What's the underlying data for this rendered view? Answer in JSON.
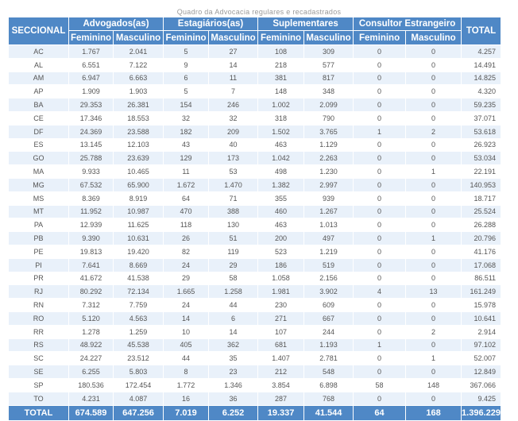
{
  "caption": "Quadro da Advocacia regulares e recadastrados",
  "headers": {
    "seccional": "SECCIONAL",
    "total": "TOTAL",
    "groups": [
      "Advogados(as)",
      "Estagiários(as)",
      "Suplementares",
      "Consultor Estrangeiro"
    ],
    "feminino": "Feminino",
    "masculino": "Masculino"
  },
  "rows": [
    {
      "uf": "AC",
      "adv_f": "1.767",
      "adv_m": "2.041",
      "est_f": "5",
      "est_m": "27",
      "sup_f": "108",
      "sup_m": "309",
      "con_f": "0",
      "con_m": "0",
      "total": "4.257"
    },
    {
      "uf": "AL",
      "adv_f": "6.551",
      "adv_m": "7.122",
      "est_f": "9",
      "est_m": "14",
      "sup_f": "218",
      "sup_m": "577",
      "con_f": "0",
      "con_m": "0",
      "total": "14.491"
    },
    {
      "uf": "AM",
      "adv_f": "6.947",
      "adv_m": "6.663",
      "est_f": "6",
      "est_m": "11",
      "sup_f": "381",
      "sup_m": "817",
      "con_f": "0",
      "con_m": "0",
      "total": "14.825"
    },
    {
      "uf": "AP",
      "adv_f": "1.909",
      "adv_m": "1.903",
      "est_f": "5",
      "est_m": "7",
      "sup_f": "148",
      "sup_m": "348",
      "con_f": "0",
      "con_m": "0",
      "total": "4.320"
    },
    {
      "uf": "BA",
      "adv_f": "29.353",
      "adv_m": "26.381",
      "est_f": "154",
      "est_m": "246",
      "sup_f": "1.002",
      "sup_m": "2.099",
      "con_f": "0",
      "con_m": "0",
      "total": "59.235"
    },
    {
      "uf": "CE",
      "adv_f": "17.346",
      "adv_m": "18.553",
      "est_f": "32",
      "est_m": "32",
      "sup_f": "318",
      "sup_m": "790",
      "con_f": "0",
      "con_m": "0",
      "total": "37.071"
    },
    {
      "uf": "DF",
      "adv_f": "24.369",
      "adv_m": "23.588",
      "est_f": "182",
      "est_m": "209",
      "sup_f": "1.502",
      "sup_m": "3.765",
      "con_f": "1",
      "con_m": "2",
      "total": "53.618"
    },
    {
      "uf": "ES",
      "adv_f": "13.145",
      "adv_m": "12.103",
      "est_f": "43",
      "est_m": "40",
      "sup_f": "463",
      "sup_m": "1.129",
      "con_f": "0",
      "con_m": "0",
      "total": "26.923"
    },
    {
      "uf": "GO",
      "adv_f": "25.788",
      "adv_m": "23.639",
      "est_f": "129",
      "est_m": "173",
      "sup_f": "1.042",
      "sup_m": "2.263",
      "con_f": "0",
      "con_m": "0",
      "total": "53.034"
    },
    {
      "uf": "MA",
      "adv_f": "9.933",
      "adv_m": "10.465",
      "est_f": "11",
      "est_m": "53",
      "sup_f": "498",
      "sup_m": "1.230",
      "con_f": "0",
      "con_m": "1",
      "total": "22.191"
    },
    {
      "uf": "MG",
      "adv_f": "67.532",
      "adv_m": "65.900",
      "est_f": "1.672",
      "est_m": "1.470",
      "sup_f": "1.382",
      "sup_m": "2.997",
      "con_f": "0",
      "con_m": "0",
      "total": "140.953"
    },
    {
      "uf": "MS",
      "adv_f": "8.369",
      "adv_m": "8.919",
      "est_f": "64",
      "est_m": "71",
      "sup_f": "355",
      "sup_m": "939",
      "con_f": "0",
      "con_m": "0",
      "total": "18.717"
    },
    {
      "uf": "MT",
      "adv_f": "11.952",
      "adv_m": "10.987",
      "est_f": "470",
      "est_m": "388",
      "sup_f": "460",
      "sup_m": "1.267",
      "con_f": "0",
      "con_m": "0",
      "total": "25.524"
    },
    {
      "uf": "PA",
      "adv_f": "12.939",
      "adv_m": "11.625",
      "est_f": "118",
      "est_m": "130",
      "sup_f": "463",
      "sup_m": "1.013",
      "con_f": "0",
      "con_m": "0",
      "total": "26.288"
    },
    {
      "uf": "PB",
      "adv_f": "9.390",
      "adv_m": "10.631",
      "est_f": "26",
      "est_m": "51",
      "sup_f": "200",
      "sup_m": "497",
      "con_f": "0",
      "con_m": "1",
      "total": "20.796"
    },
    {
      "uf": "PE",
      "adv_f": "19.813",
      "adv_m": "19.420",
      "est_f": "82",
      "est_m": "119",
      "sup_f": "523",
      "sup_m": "1.219",
      "con_f": "0",
      "con_m": "0",
      "total": "41.176"
    },
    {
      "uf": "PI",
      "adv_f": "7.641",
      "adv_m": "8.669",
      "est_f": "24",
      "est_m": "29",
      "sup_f": "186",
      "sup_m": "519",
      "con_f": "0",
      "con_m": "0",
      "total": "17.068"
    },
    {
      "uf": "PR",
      "adv_f": "41.672",
      "adv_m": "41.538",
      "est_f": "29",
      "est_m": "58",
      "sup_f": "1.058",
      "sup_m": "2.156",
      "con_f": "0",
      "con_m": "0",
      "total": "86.511"
    },
    {
      "uf": "RJ",
      "adv_f": "80.292",
      "adv_m": "72.134",
      "est_f": "1.665",
      "est_m": "1.258",
      "sup_f": "1.981",
      "sup_m": "3.902",
      "con_f": "4",
      "con_m": "13",
      "total": "161.249"
    },
    {
      "uf": "RN",
      "adv_f": "7.312",
      "adv_m": "7.759",
      "est_f": "24",
      "est_m": "44",
      "sup_f": "230",
      "sup_m": "609",
      "con_f": "0",
      "con_m": "0",
      "total": "15.978"
    },
    {
      "uf": "RO",
      "adv_f": "5.120",
      "adv_m": "4.563",
      "est_f": "14",
      "est_m": "6",
      "sup_f": "271",
      "sup_m": "667",
      "con_f": "0",
      "con_m": "0",
      "total": "10.641"
    },
    {
      "uf": "RR",
      "adv_f": "1.278",
      "adv_m": "1.259",
      "est_f": "10",
      "est_m": "14",
      "sup_f": "107",
      "sup_m": "244",
      "con_f": "0",
      "con_m": "2",
      "total": "2.914"
    },
    {
      "uf": "RS",
      "adv_f": "48.922",
      "adv_m": "45.538",
      "est_f": "405",
      "est_m": "362",
      "sup_f": "681",
      "sup_m": "1.193",
      "con_f": "1",
      "con_m": "0",
      "total": "97.102"
    },
    {
      "uf": "SC",
      "adv_f": "24.227",
      "adv_m": "23.512",
      "est_f": "44",
      "est_m": "35",
      "sup_f": "1.407",
      "sup_m": "2.781",
      "con_f": "0",
      "con_m": "1",
      "total": "52.007"
    },
    {
      "uf": "SE",
      "adv_f": "6.255",
      "adv_m": "5.803",
      "est_f": "8",
      "est_m": "23",
      "sup_f": "212",
      "sup_m": "548",
      "con_f": "0",
      "con_m": "0",
      "total": "12.849"
    },
    {
      "uf": "SP",
      "adv_f": "180.536",
      "adv_m": "172.454",
      "est_f": "1.772",
      "est_m": "1.346",
      "sup_f": "3.854",
      "sup_m": "6.898",
      "con_f": "58",
      "con_m": "148",
      "total": "367.066"
    },
    {
      "uf": "TO",
      "adv_f": "4.231",
      "adv_m": "4.087",
      "est_f": "16",
      "est_m": "36",
      "sup_f": "287",
      "sup_m": "768",
      "con_f": "0",
      "con_m": "0",
      "total": "9.425"
    }
  ],
  "footer": {
    "label": "TOTAL",
    "adv_f": "674.589",
    "adv_m": "647.256",
    "est_f": "7.019",
    "est_m": "6.252",
    "sup_f": "19.337",
    "sup_m": "41.544",
    "con_f": "64",
    "con_m": "168",
    "total": "1.396.229"
  },
  "colors": {
    "header_bg": "#4f88c6",
    "header_text": "#ffffff",
    "row_alt_bg": "#e9f1fa",
    "cell_text": "#555555",
    "caption_text": "#9a9a9a"
  }
}
